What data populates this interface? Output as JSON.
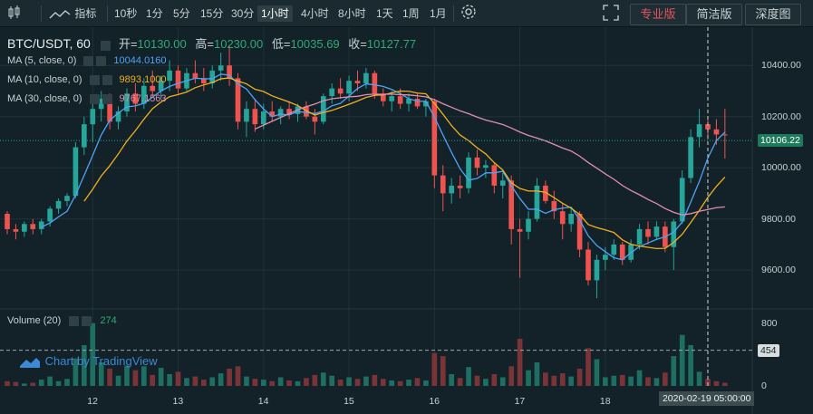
{
  "toolbar": {
    "indicators_label": "指标",
    "intervals": [
      "10秒",
      "1分",
      "5分",
      "15分",
      "30分",
      "1小时",
      "4小时",
      "8小时",
      "1天",
      "1周",
      "1月"
    ],
    "active_interval": "1小时",
    "view_buttons": [
      "专业版",
      "简洁版",
      "深度图"
    ],
    "active_view": "专业版"
  },
  "symbol": {
    "name": "BTC/USDT",
    "interval": "60",
    "open_label": "开=",
    "open": "10130.00",
    "high_label": "高=",
    "high": "10230.00",
    "low_label": "低=",
    "low": "10035.69",
    "close_label": "收=",
    "close": "10127.77"
  },
  "indicators": [
    {
      "label": "MA (5, close, 0)",
      "value": "10044.0160",
      "color": "#4fa3f7"
    },
    {
      "label": "MA (10, close, 0)",
      "value": "9893.1000",
      "color": "#f0b020"
    },
    {
      "label": "MA (30, close, 0)",
      "value": "9767.1563",
      "color": "#e08fb0"
    }
  ],
  "volume_legend": {
    "label": "Volume (20)",
    "value": "274"
  },
  "price_axis": {
    "ticks": [
      "10400.00",
      "10200.00",
      "10000.00",
      "9800.00",
      "9600.00"
    ],
    "current": "10106.22"
  },
  "volume_axis": {
    "ticks": [
      "800",
      "0"
    ],
    "marker": "454"
  },
  "x_axis": {
    "ticks": [
      "12",
      "13",
      "14",
      "15",
      "16",
      "17",
      "18"
    ],
    "crosshair_date": "2020-02-19 05:00:00"
  },
  "watermark": "Chart by TradingView",
  "colors": {
    "up": "#26a69a",
    "down": "#ef5350",
    "background": "#122228",
    "ma5": "#4fa3f7",
    "ma10": "#f0b020",
    "ma30": "#e08fb0"
  },
  "chart_data": {
    "type": "candlestick",
    "title": "BTC/USDT, 60",
    "x_unit": "day (Feb 2020)",
    "ylim": [
      9480,
      10500
    ],
    "candles": [
      [
        11.0,
        9820,
        9830,
        9740,
        9760
      ],
      [
        11.1,
        9760,
        9780,
        9720,
        9750
      ],
      [
        11.2,
        9750,
        9790,
        9730,
        9780
      ],
      [
        11.3,
        9780,
        9800,
        9740,
        9760
      ],
      [
        11.4,
        9760,
        9800,
        9740,
        9790
      ],
      [
        11.5,
        9790,
        9850,
        9770,
        9840
      ],
      [
        11.6,
        9840,
        9880,
        9820,
        9870
      ],
      [
        11.7,
        9870,
        9900,
        9850,
        9890
      ],
      [
        11.8,
        9890,
        10100,
        9880,
        10080
      ],
      [
        11.9,
        10080,
        10200,
        10050,
        10170
      ],
      [
        12.0,
        10170,
        10280,
        10100,
        10230
      ],
      [
        12.1,
        10230,
        10300,
        10180,
        10270
      ],
      [
        12.2,
        10270,
        10290,
        10150,
        10180
      ],
      [
        12.3,
        10180,
        10240,
        10150,
        10220
      ],
      [
        12.4,
        10220,
        10310,
        10200,
        10290
      ],
      [
        12.5,
        10290,
        10330,
        10220,
        10250
      ],
      [
        12.6,
        10250,
        10350,
        10230,
        10320
      ],
      [
        12.7,
        10320,
        10380,
        10280,
        10300
      ],
      [
        12.8,
        10300,
        10360,
        10270,
        10340
      ],
      [
        12.9,
        10340,
        10420,
        10300,
        10380
      ],
      [
        13.0,
        10380,
        10400,
        10290,
        10310
      ],
      [
        13.1,
        10310,
        10390,
        10300,
        10370
      ],
      [
        13.2,
        10370,
        10420,
        10330,
        10350
      ],
      [
        13.3,
        10350,
        10390,
        10300,
        10330
      ],
      [
        13.4,
        10330,
        10400,
        10310,
        10380
      ],
      [
        13.5,
        10380,
        10450,
        10340,
        10400
      ],
      [
        13.6,
        10400,
        10480,
        10320,
        10350
      ],
      [
        13.7,
        10350,
        10370,
        10150,
        10180
      ],
      [
        13.8,
        10180,
        10260,
        10120,
        10230
      ],
      [
        13.9,
        10230,
        10270,
        10140,
        10170
      ],
      [
        14.0,
        10170,
        10250,
        10150,
        10220
      ],
      [
        14.1,
        10220,
        10260,
        10180,
        10200
      ],
      [
        14.2,
        10200,
        10240,
        10170,
        10230
      ],
      [
        14.3,
        10230,
        10260,
        10190,
        10210
      ],
      [
        14.4,
        10210,
        10250,
        10180,
        10240
      ],
      [
        14.5,
        10240,
        10260,
        10190,
        10200
      ],
      [
        14.6,
        10200,
        10230,
        10130,
        10180
      ],
      [
        14.7,
        10180,
        10290,
        10170,
        10280
      ],
      [
        14.8,
        10280,
        10330,
        10250,
        10310
      ],
      [
        14.9,
        10310,
        10350,
        10270,
        10290
      ],
      [
        15.0,
        10290,
        10360,
        10260,
        10340
      ],
      [
        15.1,
        10340,
        10380,
        10300,
        10330
      ],
      [
        15.2,
        10330,
        10390,
        10310,
        10370
      ],
      [
        15.3,
        10370,
        10380,
        10270,
        10290
      ],
      [
        15.4,
        10290,
        10310,
        10240,
        10260
      ],
      [
        15.5,
        10260,
        10300,
        10220,
        10280
      ],
      [
        15.6,
        10280,
        10310,
        10230,
        10250
      ],
      [
        15.7,
        10250,
        10290,
        10220,
        10270
      ],
      [
        15.8,
        10270,
        10290,
        10230,
        10240
      ],
      [
        15.9,
        10240,
        10270,
        10200,
        10260
      ],
      [
        16.0,
        10260,
        10270,
        9920,
        9970
      ],
      [
        16.1,
        9970,
        10010,
        9830,
        9900
      ],
      [
        16.2,
        9900,
        9960,
        9860,
        9930
      ],
      [
        16.3,
        9930,
        9970,
        9880,
        9920
      ],
      [
        16.4,
        9920,
        10060,
        9900,
        10040
      ],
      [
        16.5,
        10040,
        10070,
        9970,
        10000
      ],
      [
        16.6,
        10000,
        10030,
        9960,
        10010
      ],
      [
        16.7,
        10010,
        10020,
        9900,
        9930
      ],
      [
        16.8,
        9930,
        9980,
        9880,
        9950
      ],
      [
        16.9,
        9950,
        9970,
        9700,
        9760
      ],
      [
        17.0,
        9760,
        9800,
        9570,
        9750
      ],
      [
        17.1,
        9750,
        9830,
        9720,
        9800
      ],
      [
        17.2,
        9800,
        9960,
        9790,
        9930
      ],
      [
        17.3,
        9930,
        9950,
        9860,
        9870
      ],
      [
        17.4,
        9870,
        9910,
        9800,
        9830
      ],
      [
        17.5,
        9830,
        9860,
        9720,
        9780
      ],
      [
        17.6,
        9780,
        9840,
        9750,
        9820
      ],
      [
        17.7,
        9820,
        9830,
        9650,
        9680
      ],
      [
        17.8,
        9680,
        9710,
        9540,
        9560
      ],
      [
        17.9,
        9560,
        9660,
        9490,
        9640
      ],
      [
        18.0,
        9640,
        9690,
        9600,
        9660
      ],
      [
        18.1,
        9660,
        9720,
        9640,
        9700
      ],
      [
        18.2,
        9700,
        9710,
        9620,
        9640
      ],
      [
        18.3,
        9640,
        9720,
        9630,
        9700
      ],
      [
        18.4,
        9700,
        9780,
        9680,
        9760
      ],
      [
        18.5,
        9760,
        9790,
        9700,
        9730
      ],
      [
        18.6,
        9730,
        9790,
        9720,
        9770
      ],
      [
        18.7,
        9770,
        9790,
        9670,
        9690
      ],
      [
        18.8,
        9690,
        9800,
        9600,
        9790
      ],
      [
        18.9,
        9790,
        9990,
        9780,
        9960
      ],
      [
        19.0,
        9960,
        10150,
        9940,
        10120
      ],
      [
        19.1,
        10120,
        10230,
        10080,
        10170
      ],
      [
        19.2,
        10170,
        10200,
        10110,
        10150
      ],
      [
        19.3,
        10150,
        10190,
        10090,
        10130
      ],
      [
        19.4,
        10130,
        10230,
        10035.69,
        10127.77
      ]
    ],
    "volume_ylim": [
      0,
      900
    ],
    "volume": [
      [
        11.0,
        60,
        "d"
      ],
      [
        11.1,
        50,
        "d"
      ],
      [
        11.2,
        30,
        "u"
      ],
      [
        11.3,
        40,
        "d"
      ],
      [
        11.4,
        80,
        "u"
      ],
      [
        11.5,
        120,
        "u"
      ],
      [
        11.6,
        60,
        "u"
      ],
      [
        11.7,
        90,
        "u"
      ],
      [
        11.8,
        350,
        "u"
      ],
      [
        11.9,
        520,
        "u"
      ],
      [
        12.0,
        800,
        "u"
      ],
      [
        12.1,
        300,
        "u"
      ],
      [
        12.2,
        220,
        "d"
      ],
      [
        12.3,
        130,
        "u"
      ],
      [
        12.4,
        260,
        "u"
      ],
      [
        12.5,
        200,
        "d"
      ],
      [
        12.6,
        250,
        "u"
      ],
      [
        12.7,
        140,
        "d"
      ],
      [
        12.8,
        230,
        "u"
      ],
      [
        12.9,
        150,
        "u"
      ],
      [
        13.0,
        180,
        "d"
      ],
      [
        13.1,
        100,
        "u"
      ],
      [
        13.2,
        120,
        "d"
      ],
      [
        13.3,
        80,
        "d"
      ],
      [
        13.4,
        110,
        "u"
      ],
      [
        13.5,
        160,
        "u"
      ],
      [
        13.6,
        220,
        "d"
      ],
      [
        13.7,
        250,
        "d"
      ],
      [
        13.8,
        120,
        "u"
      ],
      [
        13.9,
        90,
        "d"
      ],
      [
        14.0,
        80,
        "u"
      ],
      [
        14.1,
        60,
        "d"
      ],
      [
        14.2,
        110,
        "u"
      ],
      [
        14.3,
        70,
        "d"
      ],
      [
        14.4,
        60,
        "u"
      ],
      [
        14.5,
        100,
        "d"
      ],
      [
        14.6,
        140,
        "d"
      ],
      [
        14.7,
        170,
        "u"
      ],
      [
        14.8,
        130,
        "u"
      ],
      [
        14.9,
        80,
        "d"
      ],
      [
        15.0,
        110,
        "u"
      ],
      [
        15.1,
        90,
        "d"
      ],
      [
        15.2,
        120,
        "u"
      ],
      [
        15.3,
        140,
        "d"
      ],
      [
        15.4,
        90,
        "d"
      ],
      [
        15.5,
        70,
        "u"
      ],
      [
        15.6,
        60,
        "d"
      ],
      [
        15.7,
        80,
        "u"
      ],
      [
        15.8,
        100,
        "d"
      ],
      [
        15.9,
        70,
        "u"
      ],
      [
        16.0,
        420,
        "d"
      ],
      [
        16.1,
        380,
        "d"
      ],
      [
        16.2,
        150,
        "u"
      ],
      [
        16.3,
        100,
        "d"
      ],
      [
        16.4,
        240,
        "u"
      ],
      [
        16.5,
        130,
        "d"
      ],
      [
        16.6,
        90,
        "u"
      ],
      [
        16.7,
        150,
        "d"
      ],
      [
        16.8,
        110,
        "u"
      ],
      [
        16.9,
        250,
        "d"
      ],
      [
        17.0,
        600,
        "d"
      ],
      [
        17.1,
        200,
        "u"
      ],
      [
        17.2,
        300,
        "u"
      ],
      [
        17.3,
        170,
        "d"
      ],
      [
        17.4,
        130,
        "d"
      ],
      [
        17.5,
        160,
        "d"
      ],
      [
        17.6,
        120,
        "u"
      ],
      [
        17.7,
        220,
        "d"
      ],
      [
        17.8,
        480,
        "d"
      ],
      [
        17.9,
        340,
        "u"
      ],
      [
        18.0,
        110,
        "u"
      ],
      [
        18.1,
        130,
        "u"
      ],
      [
        18.2,
        140,
        "d"
      ],
      [
        18.3,
        120,
        "u"
      ],
      [
        18.4,
        200,
        "u"
      ],
      [
        18.5,
        110,
        "d"
      ],
      [
        18.6,
        100,
        "u"
      ],
      [
        18.7,
        170,
        "d"
      ],
      [
        18.8,
        380,
        "u"
      ],
      [
        18.9,
        650,
        "u"
      ],
      [
        19.0,
        520,
        "u"
      ],
      [
        19.1,
        180,
        "u"
      ],
      [
        19.2,
        90,
        "d"
      ],
      [
        19.3,
        60,
        "d"
      ],
      [
        19.4,
        40,
        "d"
      ]
    ]
  }
}
